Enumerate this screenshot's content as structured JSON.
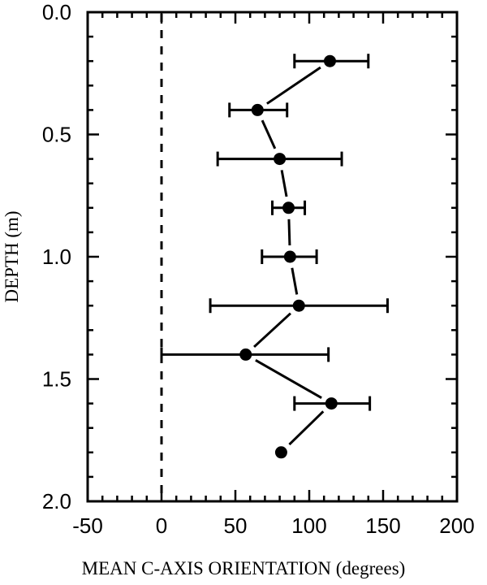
{
  "chart_data": {
    "type": "scatter",
    "title": "",
    "xlabel": "MEAN C-AXIS ORIENTATION (degrees)",
    "ylabel": "DEPTH (m)",
    "xlim": [
      -50,
      200
    ],
    "ylim": [
      2.0,
      0.0
    ],
    "y_inverted": true,
    "grid": false,
    "legend": null,
    "x_ticks": [
      -50,
      0,
      50,
      100,
      150,
      200
    ],
    "x_tick_labels": [
      "-50",
      "0",
      "50",
      "100",
      "150",
      "200"
    ],
    "x_minor_step": 10,
    "y_ticks": [
      0.0,
      0.5,
      1.0,
      1.5,
      2.0
    ],
    "y_tick_labels": [
      "0.0",
      "0.5",
      "1.0",
      "1.5",
      "2.0"
    ],
    "y_minor_step": 0.1,
    "reference_line": {
      "orientation": "vertical",
      "x": 0,
      "style": "dashed"
    },
    "series": [
      {
        "name": "Mean c-axis orientation",
        "marker": "filled-circle",
        "connected": true,
        "points": [
          {
            "depth": 0.2,
            "x": 114,
            "err_low": 90,
            "err_high": 140
          },
          {
            "depth": 0.4,
            "x": 65,
            "err_low": 46,
            "err_high": 85
          },
          {
            "depth": 0.6,
            "x": 80,
            "err_low": 38,
            "err_high": 122
          },
          {
            "depth": 0.8,
            "x": 86,
            "err_low": 75,
            "err_high": 97
          },
          {
            "depth": 1.0,
            "x": 87,
            "err_low": 68,
            "err_high": 105
          },
          {
            "depth": 1.2,
            "x": 93,
            "err_low": 33,
            "err_high": 153
          },
          {
            "depth": 1.4,
            "x": 57,
            "err_low": 0,
            "err_high": 113
          },
          {
            "depth": 1.6,
            "x": 115,
            "err_low": 90,
            "err_high": 141
          },
          {
            "depth": 1.8,
            "x": 81,
            "err_low": null,
            "err_high": null
          }
        ]
      }
    ],
    "colors": {
      "line": "#000000",
      "marker": "#000000",
      "background": "#ffffff"
    }
  }
}
